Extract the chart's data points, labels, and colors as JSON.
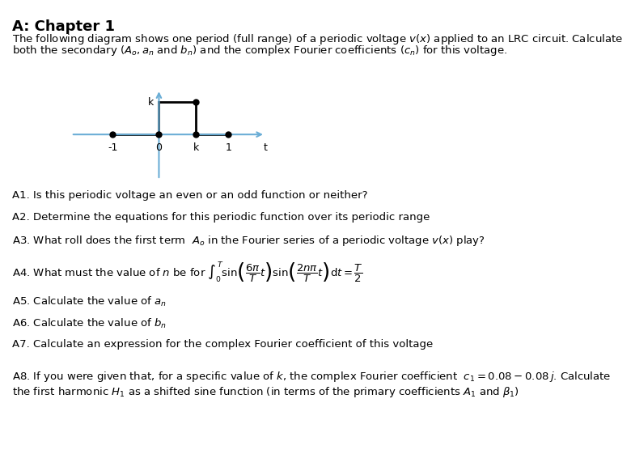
{
  "title": "A: Chapter 1",
  "intro": "The following diagram shows one period (full range) of a periodic voltage $v(x)$ applied to an LRC circuit. Calculate\nboth the secondary $(A_o, a_n$ and $b_n)$ and the complex Fourier coefficients $(c_n)$ for this voltage.",
  "questions": [
    "A1. Is this periodic voltage an even or an odd function or neither?",
    "A2. Determine the equations for this periodic function over its periodic range",
    "A3. What roll does the first term  $A_o$ in the Fourier series of a periodic voltage $v(x)$ play?",
    "A4. What must the value of $n$ be for $\\int_0^T \\sin\\!\\left(\\dfrac{6\\pi}{T}t\\right)\\sin\\!\\left(\\dfrac{2n\\pi}{T}t\\right)\\mathrm{d}t = \\dfrac{T}{2}$",
    "A5. Calculate the value of $a_n$",
    "A6. Calculate the value of $b_n$",
    "A7. Calculate an expression for the complex Fourier coefficient of this voltage",
    "A8. If you were given that, for a specific value of $k$, the complex Fourier coefficient  $c_1 = 0.08 - 0.08\\,j$. Calculate\nthe first harmonic $H_1$ as a shifted sine function (in terms of the primary coefficients $A_1$ and $\\beta_1$)"
  ],
  "bg_color": "#ffffff",
  "text_color": "#000000",
  "diagram": {
    "arrow_color": "#6baed6",
    "line_color": "#000000",
    "dot_color": "#000000",
    "labels": [
      "-1",
      "0",
      "k",
      "1",
      "t"
    ],
    "ylabel": "k"
  }
}
